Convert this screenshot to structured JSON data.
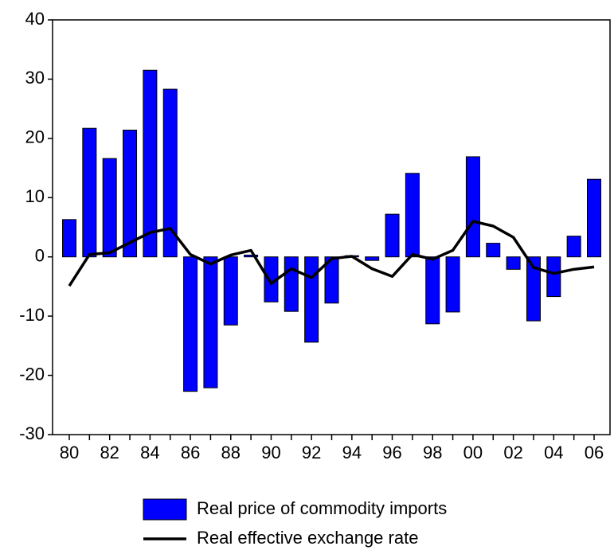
{
  "chart_data": {
    "type": "combo",
    "categories": [
      "80",
      null,
      "82",
      null,
      "84",
      null,
      "86",
      null,
      "88",
      null,
      "90",
      null,
      "92",
      null,
      "94",
      null,
      "96",
      null,
      "98",
      null,
      "00",
      null,
      "02",
      null,
      "04",
      null,
      "06"
    ],
    "series": [
      {
        "name": "Real price of commodity imports",
        "type": "bar",
        "color": "#0000ff",
        "values": [
          6.3,
          21.7,
          16.6,
          21.4,
          31.5,
          28.3,
          -22.7,
          -22.1,
          -11.5,
          0.3,
          -7.6,
          -9.2,
          -14.4,
          -7.8,
          0.2,
          -0.6,
          7.2,
          14.1,
          -11.3,
          -9.3,
          16.9,
          2.3,
          -2.1,
          -10.8,
          -6.7,
          3.5,
          13.1
        ]
      },
      {
        "name": "Real effective exchange rate",
        "type": "line",
        "color": "#000000",
        "values": [
          -4.9,
          0.4,
          0.7,
          2.4,
          4.1,
          4.8,
          0.4,
          -1.2,
          0.3,
          1.1,
          -4.5,
          -2.0,
          -3.5,
          -0.3,
          0.1,
          -2.0,
          -3.3,
          0.4,
          -0.4,
          1.1,
          6.0,
          5.2,
          3.3,
          -1.8,
          -2.8,
          -2.1,
          -1.7
        ]
      }
    ],
    "ylim": [
      -30,
      40
    ],
    "yticks": [
      -30,
      -20,
      -10,
      0,
      10,
      20,
      30,
      40
    ]
  }
}
